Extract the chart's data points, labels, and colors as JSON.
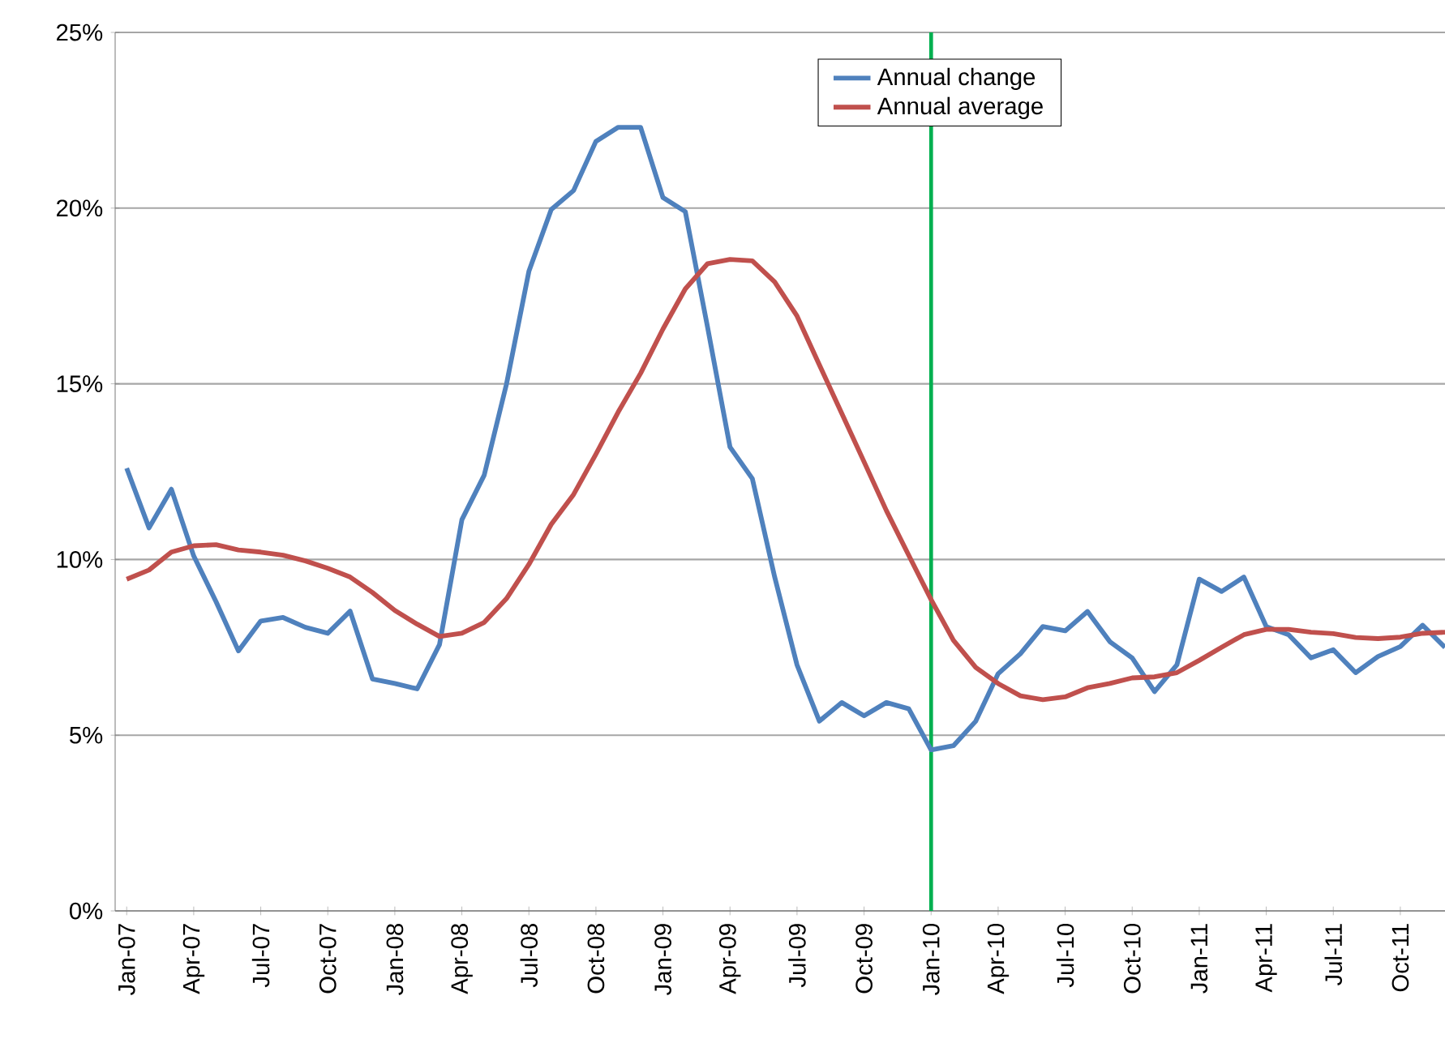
{
  "chart_data": {
    "type": "line",
    "x": [
      "2007-01",
      "2007-02",
      "2007-03",
      "2007-04",
      "2007-05",
      "2007-06",
      "2007-07",
      "2007-08",
      "2007-09",
      "2007-10",
      "2007-11",
      "2007-12",
      "2008-01",
      "2008-02",
      "2008-03",
      "2008-04",
      "2008-05",
      "2008-06",
      "2008-07",
      "2008-08",
      "2008-09",
      "2008-10",
      "2008-11",
      "2008-12",
      "2009-01",
      "2009-02",
      "2009-03",
      "2009-04",
      "2009-05",
      "2009-06",
      "2009-07",
      "2009-08",
      "2009-09",
      "2009-10",
      "2009-11",
      "2009-12",
      "2010-01",
      "2010-02",
      "2010-03",
      "2010-04",
      "2010-05",
      "2010-06",
      "2010-07",
      "2010-08",
      "2010-09",
      "2010-10",
      "2010-11",
      "2010-12",
      "2011-01",
      "2011-02",
      "2011-03",
      "2011-04",
      "2011-05",
      "2011-06",
      "2011-07",
      "2011-08",
      "2011-09",
      "2011-10",
      "2011-11",
      "2011-12"
    ],
    "series": [
      {
        "name": "Annual change",
        "color": "#4f81bd",
        "values": [
          12.6,
          10.9,
          12.0,
          10.1,
          8.8,
          7.4,
          8.25,
          8.35,
          8.07,
          7.9,
          8.53,
          6.6,
          6.47,
          6.32,
          7.58,
          11.13,
          12.4,
          15.0,
          18.2,
          19.96,
          20.5,
          21.9,
          22.3,
          22.3,
          20.3,
          19.9,
          16.6,
          13.2,
          12.3,
          9.5,
          7.0,
          5.4,
          5.93,
          5.55,
          5.93,
          5.75,
          4.58,
          4.7,
          5.4,
          6.75,
          7.32,
          8.09,
          7.97,
          8.52,
          7.66,
          7.2,
          6.24,
          7.0,
          9.44,
          9.09,
          9.5,
          8.09,
          7.86,
          7.2,
          7.43,
          6.78,
          7.24,
          7.52,
          8.13,
          7.5
        ]
      },
      {
        "name": "Annual average",
        "color": "#c0504d",
        "values": [
          9.44,
          9.7,
          10.21,
          10.39,
          10.42,
          10.27,
          10.21,
          10.12,
          9.96,
          9.75,
          9.5,
          9.06,
          8.55,
          8.16,
          7.81,
          7.9,
          8.21,
          8.89,
          9.86,
          11.0,
          11.85,
          13.0,
          14.2,
          15.3,
          16.56,
          17.7,
          18.42,
          18.54,
          18.5,
          17.9,
          16.93,
          15.54,
          14.16,
          12.78,
          11.39,
          10.12,
          8.86,
          7.7,
          6.93,
          6.47,
          6.12,
          6.01,
          6.09,
          6.35,
          6.47,
          6.63,
          6.66,
          6.78,
          7.13,
          7.5,
          7.86,
          8.01,
          8.01,
          7.93,
          7.89,
          7.78,
          7.75,
          7.79,
          7.9,
          7.93
        ]
      }
    ],
    "xlim": [
      "2006-12-16",
      "2011-12-01"
    ],
    "xticks": [
      {
        "value": "2007-01",
        "label": "Jan-07"
      },
      {
        "value": "2007-04",
        "label": "Apr-07"
      },
      {
        "value": "2007-07",
        "label": "Jul-07"
      },
      {
        "value": "2007-10",
        "label": "Oct-07"
      },
      {
        "value": "2008-01",
        "label": "Jan-08"
      },
      {
        "value": "2008-04",
        "label": "Apr-08"
      },
      {
        "value": "2008-07",
        "label": "Jul-08"
      },
      {
        "value": "2008-10",
        "label": "Oct-08"
      },
      {
        "value": "2009-01",
        "label": "Jan-09"
      },
      {
        "value": "2009-04",
        "label": "Apr-09"
      },
      {
        "value": "2009-07",
        "label": "Jul-09"
      },
      {
        "value": "2009-10",
        "label": "Oct-09"
      },
      {
        "value": "2010-01",
        "label": "Jan-10"
      },
      {
        "value": "2010-04",
        "label": "Apr-10"
      },
      {
        "value": "2010-07",
        "label": "Jul-10"
      },
      {
        "value": "2010-10",
        "label": "Oct-10"
      },
      {
        "value": "2011-01",
        "label": "Jan-11"
      },
      {
        "value": "2011-04",
        "label": "Apr-11"
      },
      {
        "value": "2011-07",
        "label": "Jul-11"
      },
      {
        "value": "2011-10",
        "label": "Oct-11"
      }
    ],
    "ylim": [
      0,
      25
    ],
    "yticks": [
      {
        "value": 0,
        "label": "0%"
      },
      {
        "value": 5,
        "label": "5%"
      },
      {
        "value": 10,
        "label": "10%"
      },
      {
        "value": 15,
        "label": "15%"
      },
      {
        "value": 20,
        "label": "20%"
      },
      {
        "value": 25,
        "label": "25%"
      }
    ],
    "ref_lines": [
      {
        "axis": "x",
        "value": "2010-01",
        "color": "#00b050"
      }
    ],
    "grid": "y",
    "legend": "top",
    "marker": "none",
    "line_style": "solid"
  }
}
